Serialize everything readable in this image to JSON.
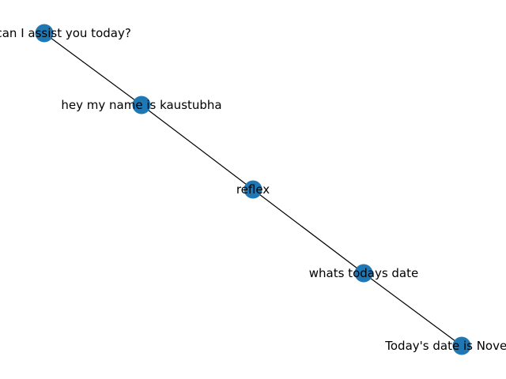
{
  "graph": {
    "node_color": "#1f77b4",
    "edge_color": "#000000",
    "nodes": [
      {
        "id": "n1",
        "label": "! How can I assist you today?"
      },
      {
        "id": "n2",
        "label": "hey my name is kaustubha"
      },
      {
        "id": "n3",
        "label": "reflex"
      },
      {
        "id": "n4",
        "label": "whats todays date"
      },
      {
        "id": "n5",
        "label": "Today's date is November"
      }
    ],
    "edges": [
      {
        "from": "n1",
        "to": "n2"
      },
      {
        "from": "n2",
        "to": "n3"
      },
      {
        "from": "n3",
        "to": "n4"
      },
      {
        "from": "n4",
        "to": "n5"
      }
    ]
  }
}
